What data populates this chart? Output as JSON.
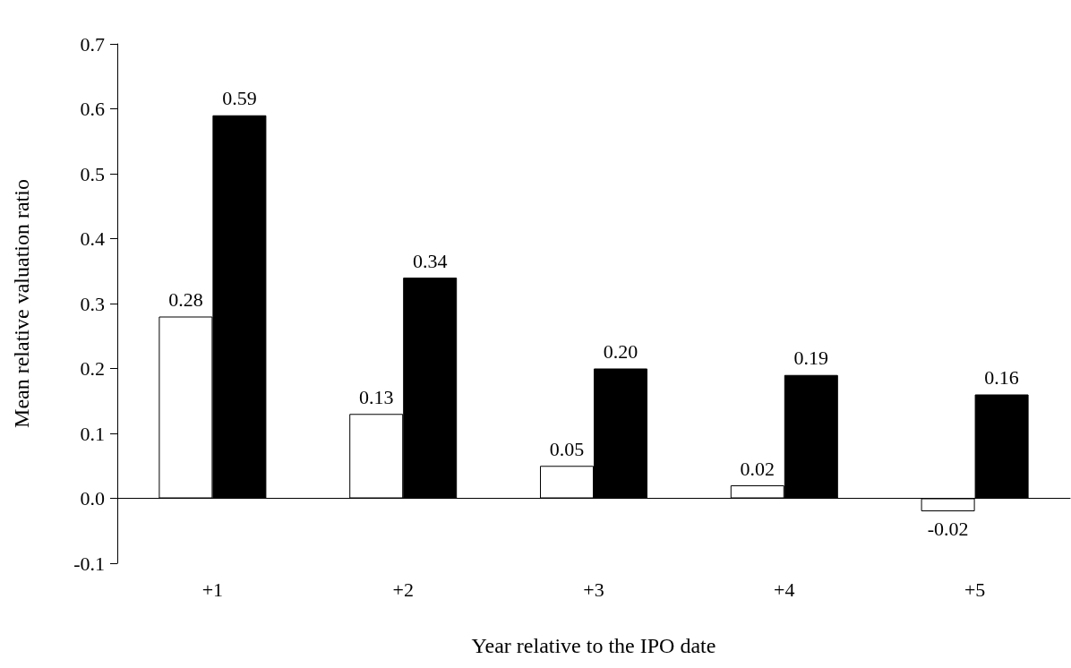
{
  "chart_data": {
    "type": "bar",
    "xlabel": "Year relative to the IPO date",
    "ylabel": "Mean relative valuation ratio",
    "categories": [
      "+1",
      "+2",
      "+3",
      "+4",
      "+5"
    ],
    "series": [
      {
        "color": "#ffffff",
        "values": [
          0.28,
          0.13,
          0.05,
          0.02,
          -0.02
        ],
        "value_labels": [
          "0.28",
          "0.13",
          "0.05",
          "0.02",
          "-0.02"
        ]
      },
      {
        "color": "#000000",
        "values": [
          0.59,
          0.34,
          0.2,
          0.19,
          0.16
        ],
        "value_labels": [
          "0.59",
          "0.34",
          "0.20",
          "0.19",
          "0.16"
        ]
      }
    ],
    "ylim": [
      -0.1,
      0.7
    ],
    "yticks": [
      -0.1,
      {
        "value": 0,
        "label": "0.0"
      },
      0.1,
      0.2,
      0.3,
      0.4,
      0.5,
      0.6,
      0.7
    ]
  }
}
